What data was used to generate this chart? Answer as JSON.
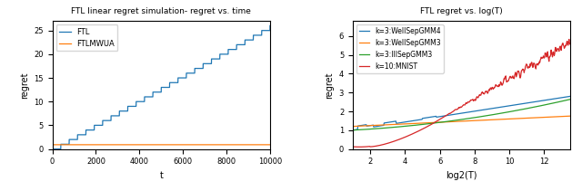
{
  "left_title": "FTL linear regret simulation- regret vs. time",
  "right_title": "FTL regret vs. log(T)",
  "left_xlabel": "t",
  "left_ylabel": "regret",
  "right_xlabel": "log2(T)",
  "right_ylabel": "regret",
  "left_xlim": [
    0,
    10000
  ],
  "left_ylim": [
    0,
    27
  ],
  "right_xlim": [
    1.0,
    13.5
  ],
  "right_ylim": [
    0,
    6.8
  ],
  "ftl_color": "#1f77b4",
  "ftlmwua_color": "#ff7f0e",
  "legend_left": [
    "FTL",
    "FTLMWUA"
  ],
  "legend_right": [
    "k=3:WellSepGMM4",
    "k=3:WellSepGMM3",
    "k=3:IllSepGMM3",
    "k=10:MNIST"
  ],
  "right_colors": [
    "#1f77b4",
    "#ff7f0e",
    "#2ca02c",
    "#d62728"
  ]
}
